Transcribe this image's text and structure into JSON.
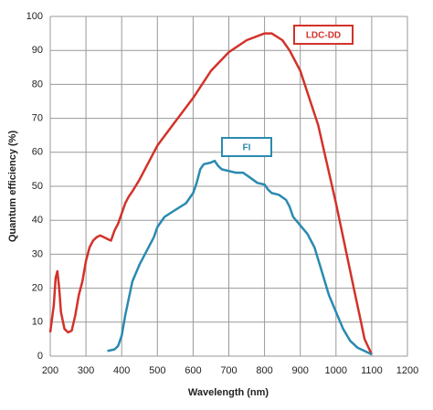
{
  "chart_data": {
    "type": "line",
    "xlabel": "Wavelength (nm)",
    "ylabel": "Quantum efficiency (%)",
    "xlim": [
      200,
      1200
    ],
    "ylim": [
      0,
      100
    ],
    "xticks": [
      200,
      300,
      400,
      500,
      600,
      700,
      800,
      900,
      1000,
      1100,
      1200
    ],
    "yticks": [
      0,
      10,
      20,
      30,
      40,
      50,
      60,
      70,
      80,
      90,
      100
    ],
    "grid": true,
    "series": [
      {
        "name": "LDC-DD",
        "color": "#d2322a",
        "x": [
          200,
          210,
          215,
          220,
          225,
          230,
          240,
          250,
          260,
          270,
          280,
          290,
          300,
          310,
          320,
          330,
          340,
          350,
          360,
          370,
          380,
          390,
          400,
          410,
          420,
          430,
          450,
          470,
          500,
          550,
          600,
          650,
          700,
          750,
          800,
          820,
          850,
          870,
          900,
          950,
          1000,
          1030,
          1050,
          1070,
          1080,
          1100
        ],
        "values": [
          7,
          15,
          23,
          25,
          20,
          13,
          8,
          7,
          7.5,
          12,
          18,
          22,
          28,
          32,
          34,
          35,
          35.5,
          35,
          34.5,
          34,
          37,
          39,
          42,
          45,
          47,
          48.5,
          52,
          56,
          62,
          69,
          76,
          84,
          89.5,
          93,
          95,
          95,
          93,
          90,
          84,
          68,
          45,
          30,
          20,
          10,
          5,
          0.5
        ]
      },
      {
        "name": "FI",
        "color": "#2a8ab0",
        "x": [
          360,
          380,
          390,
          400,
          410,
          420,
          430,
          450,
          470,
          490,
          500,
          520,
          550,
          580,
          600,
          610,
          620,
          630,
          650,
          660,
          670,
          680,
          700,
          720,
          740,
          760,
          780,
          800,
          810,
          820,
          840,
          860,
          870,
          880,
          900,
          920,
          940,
          960,
          980,
          1000,
          1020,
          1040,
          1060,
          1080,
          1100
        ],
        "values": [
          1.5,
          2,
          3,
          6,
          12,
          17,
          22,
          27,
          31,
          35,
          38,
          41,
          43,
          45,
          48,
          51,
          55,
          56.5,
          57,
          57.5,
          56,
          55,
          54.5,
          54,
          54,
          52.5,
          51,
          50.5,
          49,
          48,
          47.5,
          46,
          44,
          41,
          38.5,
          36,
          32,
          25,
          18,
          13,
          8,
          4.5,
          2.5,
          1.5,
          0.5
        ]
      }
    ]
  }
}
